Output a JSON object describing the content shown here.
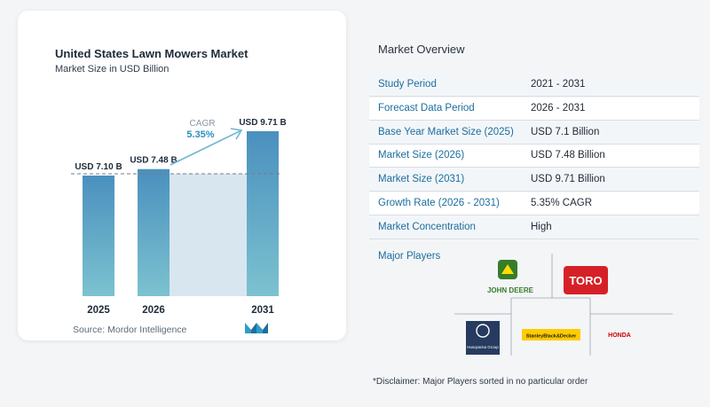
{
  "chart": {
    "title": "United States Lawn Mowers Market",
    "subtitle": "Market Size in USD Billion",
    "source": "Source:  Mordor Intelligence",
    "cagr_label": "CAGR",
    "cagr_value": "5.35%",
    "colors": {
      "bar": "#4a90be",
      "bar_light": "#7cc2d0",
      "band": "#d8e6f0",
      "accent": "#2f8fbf"
    }
  },
  "chart_data": {
    "type": "bar",
    "title": "United States Lawn Mowers Market",
    "subtitle": "Market Size in USD Billion",
    "categories": [
      "2025",
      "2026",
      "2031"
    ],
    "values": [
      7.1,
      7.48,
      9.71
    ],
    "data_labels": [
      "USD 7.10 B",
      "USD 7.48 B",
      "USD 9.71 B"
    ],
    "ylabel": "Market Size in USD Billion",
    "ylim": [
      0,
      10
    ],
    "annotation": {
      "text": "CAGR 5.35%",
      "from": "2026",
      "to": "2031"
    },
    "grid": false
  },
  "overview": {
    "title": "Market Overview",
    "rows": [
      {
        "key": "Study Period",
        "value": "2021 - 2031"
      },
      {
        "key": "Forecast Data Period",
        "value": "2026 - 2031"
      },
      {
        "key": "Base Year Market Size (2025)",
        "value": "USD 7.1 Billion"
      },
      {
        "key": "Market Size (2026)",
        "value": "USD 7.48 Billion"
      },
      {
        "key": "Market Size (2031)",
        "value": "USD 9.71 Billion"
      },
      {
        "key": "Growth Rate (2026 - 2031)",
        "value": "5.35% CAGR"
      },
      {
        "key": "Market Concentration",
        "value": "High"
      }
    ],
    "players_label": "Major Players",
    "players": [
      "JOHN DEERE",
      "TORO",
      "Husqvarna Group",
      "StanleyBlack&Decker",
      "HONDA"
    ],
    "disclaimer": "*Disclaimer: Major Players sorted in no particular order"
  }
}
